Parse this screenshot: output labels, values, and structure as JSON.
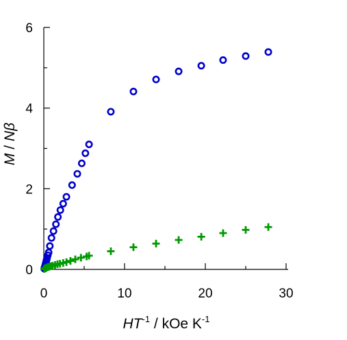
{
  "chart_data": {
    "type": "scatter",
    "xlabel_parts": {
      "var1": "H",
      "var2": "T",
      "exp1": "-1",
      "unit": " / kOe K",
      "exp2": "-1"
    },
    "ylabel_parts": {
      "var1": "M",
      "sep": " / ",
      "var2": "N",
      "var3": "β"
    },
    "xlim": [
      0,
      30
    ],
    "ylim": [
      0,
      6
    ],
    "x_ticks": [
      0,
      10,
      20,
      30
    ],
    "y_ticks": [
      0,
      2,
      4,
      6
    ],
    "x_minor_ticks": [
      5,
      15,
      25
    ],
    "y_minor_ticks": [
      1,
      3,
      5
    ],
    "grid": false,
    "legend": "none",
    "series": [
      {
        "marker": "circle-open",
        "color": "#0000cc",
        "points": [
          [
            0.05,
            0.02
          ],
          [
            0.1,
            0.05
          ],
          [
            0.15,
            0.08
          ],
          [
            0.2,
            0.12
          ],
          [
            0.25,
            0.16
          ],
          [
            0.3,
            0.2
          ],
          [
            0.35,
            0.24
          ],
          [
            0.4,
            0.28
          ],
          [
            0.5,
            0.35
          ],
          [
            0.6,
            0.42
          ],
          [
            0.75,
            0.58
          ],
          [
            0.95,
            0.78
          ],
          [
            1.2,
            0.95
          ],
          [
            1.5,
            1.12
          ],
          [
            1.75,
            1.3
          ],
          [
            2.05,
            1.47
          ],
          [
            2.4,
            1.63
          ],
          [
            2.8,
            1.8
          ],
          [
            3.5,
            2.09
          ],
          [
            4.15,
            2.37
          ],
          [
            4.7,
            2.63
          ],
          [
            5.15,
            2.88
          ],
          [
            5.6,
            3.1
          ],
          [
            8.3,
            3.91
          ],
          [
            11.1,
            4.41
          ],
          [
            13.9,
            4.71
          ],
          [
            16.7,
            4.91
          ],
          [
            19.5,
            5.05
          ],
          [
            22.2,
            5.19
          ],
          [
            25.0,
            5.29
          ],
          [
            27.8,
            5.39
          ]
        ]
      },
      {
        "marker": "plus",
        "color": "#009900",
        "points": [
          [
            0.05,
            0.01
          ],
          [
            0.1,
            0.02
          ],
          [
            0.2,
            0.03
          ],
          [
            0.3,
            0.04
          ],
          [
            0.4,
            0.05
          ],
          [
            0.55,
            0.06
          ],
          [
            0.7,
            0.07
          ],
          [
            0.9,
            0.08
          ],
          [
            1.1,
            0.09
          ],
          [
            1.4,
            0.11
          ],
          [
            1.7,
            0.13
          ],
          [
            2.0,
            0.14
          ],
          [
            2.4,
            0.16
          ],
          [
            2.8,
            0.18
          ],
          [
            3.3,
            0.21
          ],
          [
            3.9,
            0.25
          ],
          [
            4.6,
            0.29
          ],
          [
            5.3,
            0.32
          ],
          [
            5.6,
            0.34
          ],
          [
            8.3,
            0.45
          ],
          [
            11.1,
            0.55
          ],
          [
            13.9,
            0.64
          ],
          [
            16.7,
            0.73
          ],
          [
            19.5,
            0.81
          ],
          [
            22.2,
            0.9
          ],
          [
            25.0,
            0.98
          ],
          [
            27.8,
            1.05
          ]
        ]
      }
    ]
  }
}
